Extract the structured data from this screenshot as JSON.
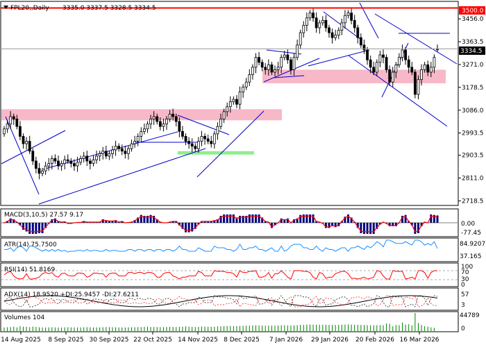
{
  "header": {
    "symbol": "FPL20,,Daily",
    "ohlc": "3335.0 3337.5 3328.5 3334.5"
  },
  "price_axis": {
    "ticks": [
      "3456.0",
      "3363.5",
      "3271.0",
      "3178.5",
      "3086.0",
      "2993.5",
      "2903.5",
      "2811.0",
      "2718.5"
    ],
    "resistance_label": "3500.0",
    "last_price_label": "3334.5"
  },
  "date_axis": [
    "14 Aug 2025",
    "8 Sep 2025",
    "30 Sep 2025",
    "22 Oct 2025",
    "14 Nov 2025",
    "8 Dec 2025",
    "7 Jan 2026",
    "29 Jan 2026",
    "20 Feb 2026",
    "16 Mar 2026"
  ],
  "indicators": {
    "macd": {
      "label": "MACD(3,10,5) 27.57 9.17",
      "ticks": [
        "0.00",
        "-77.45"
      ]
    },
    "atr": {
      "label": "ATR(14) 75.7500",
      "ticks": [
        "84.9207",
        "37.165"
      ]
    },
    "rsi": {
      "label": "RSI(14) 51.8169",
      "ticks": [
        "100",
        "70",
        "30",
        "0"
      ]
    },
    "adx": {
      "label": "ADX(14) 18.9520 +DI:25.9457 -DI:27.6211",
      "ticks": [
        "57",
        "3"
      ]
    },
    "volumes": {
      "label": "Volumes 104",
      "ticks": [
        "44789",
        "0"
      ]
    }
  },
  "colors": {
    "bull_candle": "#ffffff",
    "bear_candle": "#000000",
    "resistance": "#ff0000",
    "zone": "#f7b8c8",
    "support_zone": "#90ee90",
    "trendline": "#0000cc",
    "macd_hist": "#000080",
    "macd_signal": "#ff0000",
    "atr": "#1e90ff",
    "rsi": "#ff0000"
  },
  "chart_data": {
    "type": "candlestick",
    "ylim": [
      2718.5,
      3510
    ],
    "resistance": 3500.0,
    "last_price": 3334.5,
    "grid": false,
    "zones": [
      {
        "from": 3045,
        "to": 3090
      },
      {
        "from": 3195,
        "to": 3250
      },
      {
        "from": 2906,
        "to": 2920
      }
    ],
    "x_labels": [
      "14 Aug 2025",
      "8 Sep 2025",
      "30 Sep 2025",
      "22 Oct 2025",
      "14 Nov 2025",
      "8 Dec 2025",
      "7 Jan 2026",
      "29 Jan 2026",
      "20 Feb 2026",
      "16 Mar 2026"
    ],
    "close": [
      3010,
      3030,
      3060,
      3050,
      3020,
      2980,
      2950,
      2960,
      2920,
      2880,
      2850,
      2830,
      2840,
      2860,
      2870,
      2890,
      2880,
      2860,
      2870,
      2885,
      2880,
      2870,
      2860,
      2875,
      2890,
      2900,
      2880,
      2870,
      2885,
      2900,
      2910,
      2920,
      2900,
      2910,
      2925,
      2940,
      2930,
      2920,
      2910,
      2930,
      2950,
      2960,
      2980,
      3000,
      3010,
      3030,
      3050,
      3060,
      3040,
      3020,
      3030,
      3050,
      3070,
      3060,
      3040,
      3000,
      2980,
      2960,
      2950,
      2940,
      2930,
      2960,
      2980,
      2970,
      2960,
      2950,
      2990,
      3020,
      3050,
      3080,
      3100,
      3120,
      3130,
      3110,
      3160,
      3180,
      3200,
      3230,
      3260,
      3300,
      3280,
      3260,
      3250,
      3270,
      3240,
      3250,
      3260,
      3300,
      3310,
      3290,
      3250,
      3300,
      3350,
      3400,
      3430,
      3460,
      3480,
      3460,
      3420,
      3440,
      3450,
      3420,
      3400,
      3380,
      3390,
      3410,
      3440,
      3470,
      3480,
      3450,
      3420,
      3380,
      3350,
      3330,
      3290,
      3260,
      3240,
      3280,
      3310,
      3300,
      3250,
      3200,
      3240,
      3270,
      3300,
      3330,
      3290,
      3260,
      3240,
      3150,
      3210,
      3250,
      3270,
      3240,
      3260,
      3300,
      3334.5
    ],
    "open": [
      2990,
      3010,
      3030,
      3060,
      3050,
      3020,
      2980,
      2950,
      2960,
      2920,
      2880,
      2850,
      2830,
      2840,
      2860,
      2870,
      2890,
      2880,
      2860,
      2870,
      2885,
      2880,
      2870,
      2860,
      2875,
      2890,
      2900,
      2880,
      2870,
      2885,
      2900,
      2910,
      2920,
      2900,
      2910,
      2925,
      2940,
      2930,
      2920,
      2910,
      2930,
      2950,
      2960,
      2980,
      3000,
      3010,
      3030,
      3050,
      3060,
      3040,
      3020,
      3030,
      3050,
      3070,
      3060,
      3040,
      3000,
      2980,
      2960,
      2950,
      2940,
      2930,
      2960,
      2980,
      2970,
      2960,
      2950,
      2990,
      3020,
      3050,
      3080,
      3100,
      3120,
      3130,
      3110,
      3160,
      3180,
      3200,
      3230,
      3260,
      3300,
      3280,
      3260,
      3250,
      3270,
      3240,
      3250,
      3260,
      3300,
      3310,
      3290,
      3250,
      3300,
      3350,
      3400,
      3430,
      3460,
      3480,
      3460,
      3420,
      3440,
      3450,
      3420,
      3400,
      3380,
      3390,
      3410,
      3440,
      3470,
      3480,
      3450,
      3420,
      3380,
      3350,
      3330,
      3290,
      3260,
      3240,
      3280,
      3310,
      3300,
      3250,
      3200,
      3240,
      3270,
      3300,
      3330,
      3290,
      3260,
      3240,
      3150,
      3210,
      3250,
      3270,
      3240,
      3260,
      3335.0
    ],
    "volume": [
      9000,
      9500,
      10000,
      11000,
      9000,
      12000,
      11000,
      10500,
      9800,
      11000,
      10200,
      9500,
      9000,
      8800,
      9200,
      9400,
      9100,
      9000,
      8700,
      9300,
      9500,
      9200,
      9100,
      8900,
      9000,
      9300,
      9600,
      9400,
      9100,
      9000,
      9200,
      9500,
      9800,
      9700,
      9400,
      9300,
      9100,
      9000,
      8900,
      9200,
      9400,
      9600,
      9800,
      10000,
      10500,
      10800,
      10200,
      10000,
      9900,
      9700,
      9800,
      10000,
      10200,
      10100,
      9900,
      10500,
      11000,
      11500,
      10800,
      10300,
      10100,
      10400,
      10900,
      11200,
      10700,
      10400,
      10800,
      11400,
      11800,
      12300,
      12500,
      12700,
      12400,
      12100,
      12600,
      13000,
      13300,
      13600,
      13900,
      14200,
      13800,
      13500,
      13300,
      13600,
      13400,
      13500,
      13700,
      14100,
      14300,
      14000,
      13700,
      14200,
      14700,
      15200,
      15600,
      16000,
      16200,
      15800,
      15400,
      15600,
      15800,
      15500,
      15200,
      15000,
      15100,
      15400,
      15800,
      16100,
      16400,
      16000,
      15700,
      15400,
      15100,
      14900,
      14600,
      14300,
      14200,
      14500,
      14800,
      14600,
      19000,
      18000,
      12000,
      15000,
      14500,
      21000,
      16000,
      17000,
      14000,
      44789,
      20000,
      15000,
      12000,
      11000,
      9000,
      8000,
      104
    ]
  }
}
